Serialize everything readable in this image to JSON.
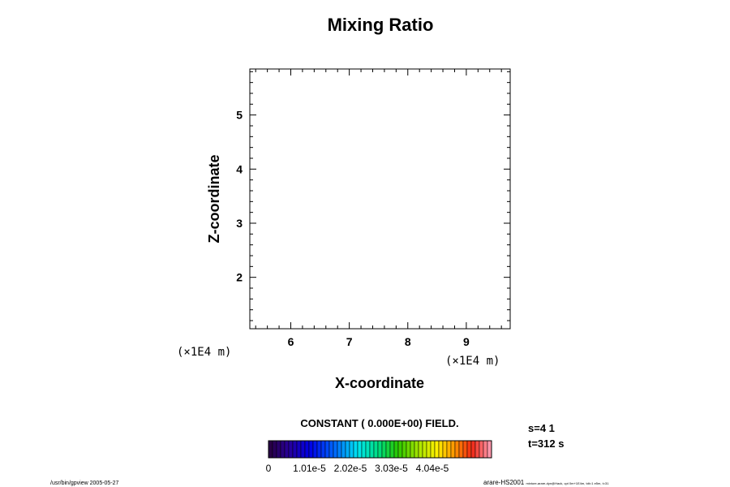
{
  "chart_data": {
    "type": "heatmap",
    "title": "Mixing Ratio",
    "xlabel": "X-coordinate",
    "ylabel": "Z-coordinate",
    "xunit": "(×1E4 m)",
    "yunit": "(×1E4 m)",
    "xlim": [
      5.3,
      9.75
    ],
    "ylim": [
      1.05,
      5.85
    ],
    "x_ticks": [
      6,
      7,
      8,
      9
    ],
    "y_ticks": [
      2,
      3,
      4,
      5
    ],
    "x_tick_labels": [
      "6",
      "7",
      "8",
      "9"
    ],
    "y_tick_labels": [
      "2",
      "3",
      "4",
      "5"
    ],
    "field_note": "CONSTANT ( 0.000E+00) FIELD.",
    "colorbar": {
      "min": 0,
      "max": 5.5e-05,
      "levels": 55,
      "tick_values": [
        0,
        1.01e-05,
        2.02e-05,
        3.03e-05,
        4.04e-05
      ],
      "tick_labels": [
        "0",
        "1.01e-5",
        "2.02e-5",
        "3.03e-5",
        "4.04e-5"
      ]
    },
    "info": {
      "line1": "s=4 1",
      "line2": "t=312 s"
    },
    "footer_left": "/usr/bin/gpview 2005-05-27",
    "footer_right_main": "arare-HS2001",
    "footer_right_small": "mixture-arare-dyn@Hack, cpt 0m+1E4m, tdt=1 e5m, t=31"
  }
}
